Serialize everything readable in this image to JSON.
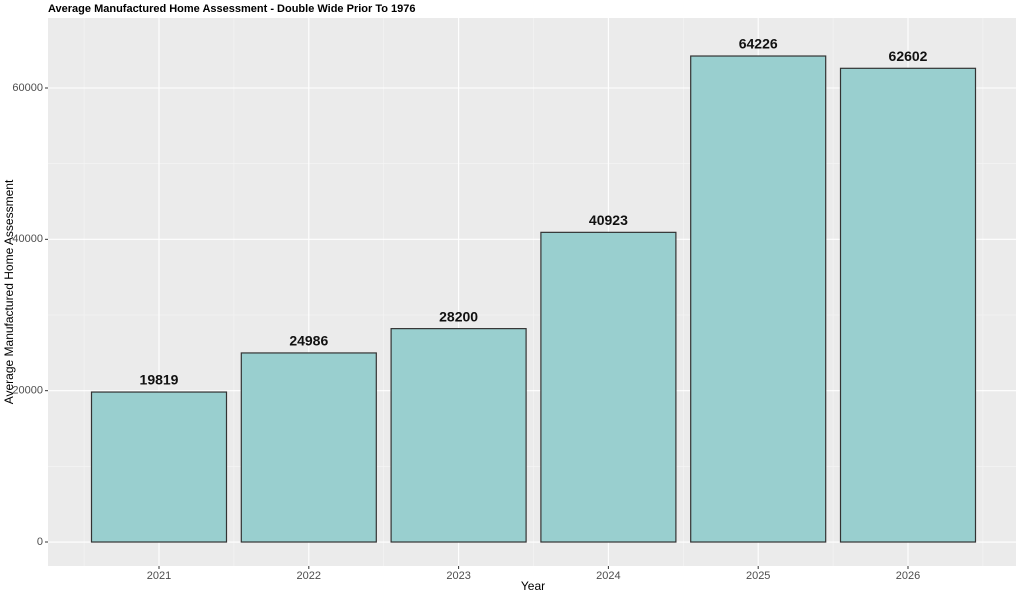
{
  "chart_data": {
    "type": "bar",
    "title": "Average Manufactured Home Assessment - Double Wide Prior To 1976",
    "x_label": "Year",
    "y_label": "Average Manufactured Home Assessment",
    "categories": [
      "2021",
      "2022",
      "2023",
      "2024",
      "2025",
      "2026"
    ],
    "values": [
      19819,
      24986,
      28200,
      40923,
      64226,
      62602
    ],
    "color": "#99cfcf",
    "ylim": [
      -3170,
      69250
    ],
    "yticks": [
      0,
      20000,
      40000,
      60000
    ],
    "grid": true
  }
}
